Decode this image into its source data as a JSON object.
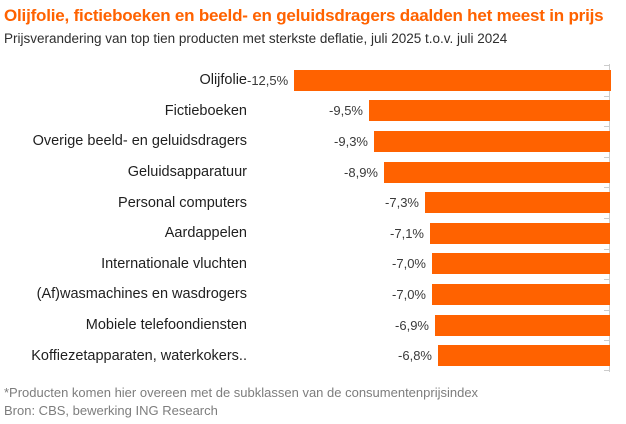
{
  "chart_data": {
    "type": "bar",
    "orientation": "horizontal",
    "title": "Olijfolie, fictieboeken en beeld- en geluidsdragers daalden het meest in prijs",
    "subtitle": "Prijsverandering van top tien producten met sterkste deflatie, juli 2025 t.o.v. juli 2024",
    "categories": [
      "Olijfolie",
      "Fictieboeken",
      "Overige beeld- en geluidsdragers",
      "Geluidsapparatuur",
      "Personal computers",
      "Aardappelen",
      "Internationale vluchten",
      "(Af)wasmachines en wasdrogers",
      "Mobiele telefoondiensten",
      "Koffiezetapparaten, waterkokers.."
    ],
    "values": [
      -12.5,
      -9.5,
      -9.3,
      -8.9,
      -7.3,
      -7.1,
      -7.0,
      -7.0,
      -6.9,
      -6.8
    ],
    "value_labels": [
      "-12,5%",
      "-9,5%",
      "-9,3%",
      "-8,9%",
      "-7,3%",
      "-7,1%",
      "-7,0%",
      "-7,0%",
      "-6,9%",
      "-6,8%"
    ],
    "unit": "%",
    "xlim": [
      -14.3,
      0
    ],
    "value_axis_side": "right",
    "grid": false,
    "legend": false,
    "colors": {
      "bar": "#FF6200",
      "title": "#FF6200",
      "subtitle": "#2E2E2E",
      "text": "#1F1F1F",
      "value": "#3A3A3A",
      "axis": "#CCCCCC",
      "footer": "#7D7D7D"
    },
    "footnote": "*Producten komen hier overeen met de subklassen van de consumentenprijsindex",
    "source": "Bron: CBS, bewerking ING Research"
  }
}
